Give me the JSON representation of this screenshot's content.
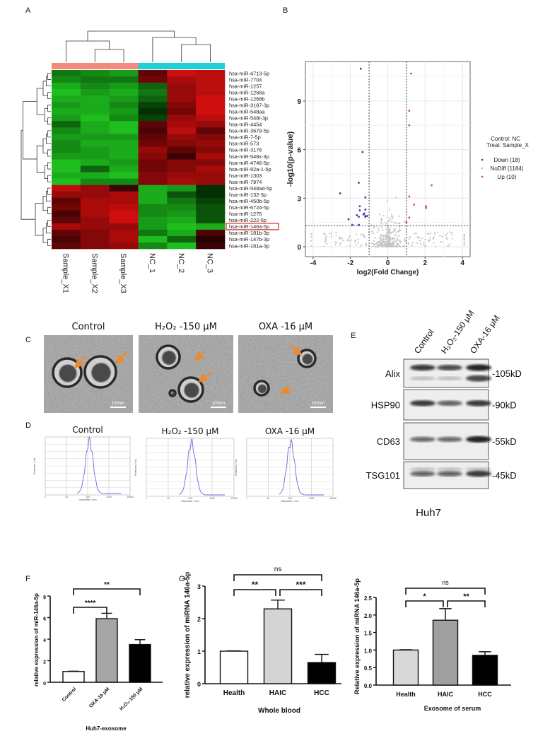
{
  "panel_labels": {
    "A": "A",
    "B": "B",
    "C": "C",
    "D": "D",
    "E": "E",
    "F": "F",
    "G": "G"
  },
  "chart_data": [
    {
      "panel": "A",
      "type": "heatmap",
      "columns": [
        "Sample_X1",
        "Sample_X2",
        "Sample_X3",
        "NC_1",
        "NC_2",
        "NC_3"
      ],
      "column_groups": [
        {
          "group": "Sample_X",
          "color": "#f28b7d",
          "columns": [
            0,
            1,
            2
          ]
        },
        {
          "group": "NC",
          "color": "#22cfd6",
          "columns": [
            3,
            4,
            5
          ]
        }
      ],
      "colors": {
        "low": "#22d022",
        "mid": "#000000",
        "high": "#e01010"
      },
      "rows": [
        "hsa-miR-4713-5p",
        "hsa-miR-7704",
        "hsa-miR-1257",
        "hsa-miR-1268a",
        "hsa-miR-1268b",
        "hsa-miR-3187-3p",
        "hsa-miR-548aa",
        "hsa-miR-548t-3p",
        "hsa-miR-4454",
        "hsa-miR-3679-5p",
        "hsa-miR-7-5p",
        "hsa-miR-573",
        "hsa-miR-3176",
        "hsa-miR-548x-3p",
        "hsa-miR-4746-5p",
        "hsa-miR-92a-1-5p",
        "hsa-miR-1303",
        "hsa-miR-7974",
        "hsa-miR-548ad-5p",
        "hsa-miR-132-3p",
        "hsa-miR-450b-5p",
        "hsa-miR-6724-5p",
        "hsa-miR-1275",
        "hsa-miR-222-5p",
        "hsa-miR-146a-5p",
        "hsa-miR-181b-3p",
        "hsa-miR-147b-3p",
        "hsa-miR-181a-3p"
      ],
      "highlighted_row": "hsa-miR-146a-5p",
      "values": [
        [
          -0.5,
          -0.6,
          -0.7,
          0.3,
          0.9,
          0.8
        ],
        [
          -0.6,
          -0.5,
          -0.5,
          0.4,
          0.7,
          0.8
        ],
        [
          -0.8,
          -0.6,
          -0.7,
          -0.4,
          0.6,
          0.8
        ],
        [
          -0.9,
          -0.7,
          -0.8,
          -0.5,
          0.6,
          0.8
        ],
        [
          -0.8,
          -0.8,
          -0.7,
          -0.4,
          0.6,
          0.9
        ],
        [
          -0.7,
          -0.8,
          -0.6,
          -0.2,
          0.5,
          0.9
        ],
        [
          -0.8,
          -0.8,
          -0.7,
          -0.1,
          0.4,
          0.9
        ],
        [
          -0.7,
          -0.9,
          -0.6,
          -0.2,
          0.6,
          0.8
        ],
        [
          -0.4,
          -0.8,
          -0.9,
          0.3,
          0.7,
          0.6
        ],
        [
          -0.6,
          -0.8,
          -0.9,
          0.2,
          0.8,
          0.3
        ],
        [
          -0.7,
          -0.7,
          -0.7,
          0.3,
          0.6,
          0.5
        ],
        [
          -0.6,
          -0.8,
          -0.8,
          0.4,
          0.5,
          0.6
        ],
        [
          -0.6,
          -0.7,
          -0.8,
          0.6,
          0.3,
          0.5
        ],
        [
          -0.7,
          -0.7,
          -0.8,
          0.5,
          0.1,
          0.7
        ],
        [
          -0.9,
          -0.8,
          -0.7,
          0.4,
          0.5,
          0.5
        ],
        [
          -0.9,
          -0.4,
          -0.8,
          0.4,
          0.5,
          0.7
        ],
        [
          -0.8,
          -0.8,
          -0.9,
          0.5,
          0.6,
          0.6
        ],
        [
          -0.9,
          -0.6,
          -0.6,
          0.5,
          0.7,
          0.6
        ],
        [
          0.8,
          0.6,
          0.1,
          -0.8,
          -0.7,
          -0.1
        ],
        [
          0.6,
          0.6,
          0.7,
          -0.8,
          -0.3,
          -0.1
        ],
        [
          0.3,
          0.7,
          0.7,
          -0.8,
          -0.5,
          -0.2
        ],
        [
          0.4,
          0.7,
          0.8,
          -0.6,
          -0.6,
          -0.3
        ],
        [
          0.2,
          0.7,
          0.9,
          -0.6,
          -0.7,
          -0.3
        ],
        [
          0.3,
          0.6,
          0.9,
          -0.7,
          -0.8,
          -0.3
        ],
        [
          0.7,
          0.6,
          0.6,
          -0.7,
          -0.9,
          -0.8
        ],
        [
          0.3,
          0.5,
          0.7,
          -0.5,
          -0.8,
          0.2
        ],
        [
          0.2,
          0.5,
          0.7,
          -0.9,
          -0.4,
          0.0
        ],
        [
          0.3,
          0.5,
          0.6,
          -0.6,
          -0.9,
          0.1
        ]
      ]
    },
    {
      "panel": "B",
      "type": "scatter",
      "xlabel": "log2(Fold Change)",
      "ylabel": "-log10(p-value)",
      "xlim": [
        -4.4,
        4.4
      ],
      "ylim": [
        -0.6,
        11.4
      ],
      "xticks": [
        -4,
        -2,
        0,
        2,
        4
      ],
      "yticks": [
        0,
        3,
        6,
        9
      ],
      "grid": true,
      "thresholds": {
        "x": [
          -1,
          1
        ],
        "y": 1.3
      },
      "legend": {
        "position": "right",
        "title_lines": [
          "Control: NC",
          "Treat:    Sample_X"
        ]
      },
      "series": [
        {
          "name": "Down (18)",
          "color": "#3a3aa8",
          "points": [
            [
              -1.45,
              11.0
            ],
            [
              -1.35,
              5.85
            ],
            [
              -1.55,
              3.95
            ],
            [
              -2.55,
              3.3
            ],
            [
              -1.2,
              3.05
            ],
            [
              -1.5,
              2.5
            ],
            [
              -1.5,
              2.25
            ],
            [
              -1.2,
              2.3
            ],
            [
              -1.25,
              2.05
            ],
            [
              -1.65,
              1.95
            ],
            [
              -1.2,
              1.9
            ],
            [
              -1.55,
              1.85
            ],
            [
              -1.1,
              1.9
            ],
            [
              -1.2,
              1.85
            ],
            [
              -2.1,
              1.7
            ],
            [
              -1.9,
              1.35
            ],
            [
              -1.55,
              1.35
            ],
            [
              -1.3,
              2.0
            ]
          ]
        },
        {
          "name": "NoDiff (1184)",
          "color": "#c4c4c4",
          "count": 1184
        },
        {
          "name": "Up (10)",
          "color": "#d0486a",
          "points": [
            [
              1.25,
              10.7
            ],
            [
              1.15,
              8.4
            ],
            [
              1.15,
              7.5
            ],
            [
              2.35,
              3.8
            ],
            [
              1.15,
              3.1
            ],
            [
              1.4,
              2.6
            ],
            [
              2.05,
              2.5
            ],
            [
              2.05,
              2.4
            ],
            [
              1.15,
              1.8
            ],
            [
              1.0,
              1.5
            ]
          ]
        }
      ]
    },
    {
      "panel": "D",
      "type": "line",
      "xlabel": "Diameter / nm",
      "ylabel": "Particles / mL",
      "xscale": "log",
      "xticks": [
        1,
        10,
        100,
        1000,
        10000
      ],
      "series": [
        {
          "name": "Control",
          "peak_diameter_nm": 120
        },
        {
          "name": "H₂O₂ -150 μM",
          "peak_diameter_nm": 115
        },
        {
          "name": "OXA -16 μM",
          "peak_diameter_nm": 110
        }
      ]
    },
    {
      "panel": "F",
      "type": "bar",
      "categories": [
        "Control",
        "OXA-16 μM",
        "H₂O₂-150 μM"
      ],
      "values": [
        1.0,
        5.9,
        3.5
      ],
      "errors": [
        0.0,
        0.5,
        0.45
      ],
      "colors": [
        "#ffffff",
        "#a6a6a6",
        "#000000"
      ],
      "ylabel": "relative expression of miR-146a-5p",
      "xlabel": "Huh7-exosome",
      "ylim": [
        0,
        8
      ],
      "yticks": [
        "0",
        "2",
        "4",
        "6",
        "8"
      ],
      "comparisons": [
        {
          "from": 0,
          "to": 1,
          "label": "****"
        },
        {
          "from": 0,
          "to": 2,
          "label": "**"
        }
      ]
    },
    {
      "panel": "G",
      "type": "bar",
      "categories": [
        "Health",
        "HAIC",
        "HCC"
      ],
      "values": [
        1.0,
        2.3,
        0.65
      ],
      "errors": [
        0.02,
        0.27,
        0.25
      ],
      "colors": [
        "#ffffff",
        "#d4d4d4",
        "#000000"
      ],
      "ylabel": "relative expression of miRNA 146a-5p",
      "xlabel": "Whole blood",
      "ylim": [
        0,
        3
      ],
      "yticks": [
        "0",
        "1",
        "2",
        "3"
      ],
      "comparisons": [
        {
          "from": 0,
          "to": 1,
          "label": "**"
        },
        {
          "from": 1,
          "to": 2,
          "label": "***"
        },
        {
          "from": 0,
          "to": 2,
          "label": "ns"
        }
      ]
    },
    {
      "panel": "G",
      "type": "bar",
      "categories": [
        "Health",
        "HAIC",
        "HCC"
      ],
      "values": [
        1.0,
        1.85,
        0.85
      ],
      "errors": [
        0.02,
        0.33,
        0.1
      ],
      "colors": [
        "#d8d8d8",
        "#a0a0a0",
        "#000000"
      ],
      "ylabel": "Relative expression of miRNA 146a-5p",
      "xlabel": "Exosome of serum",
      "ylim": [
        0,
        2.5
      ],
      "yticks": [
        "0.0",
        "0.5",
        "1.0",
        "1.5",
        "2.0",
        "2.5"
      ],
      "comparisons": [
        {
          "from": 0,
          "to": 1,
          "label": "*"
        },
        {
          "from": 1,
          "to": 2,
          "label": "**"
        },
        {
          "from": 0,
          "to": 2,
          "label": "ns"
        }
      ]
    }
  ],
  "panel_c": {
    "titles": [
      "Control",
      "H₂O₂ -150 μM",
      "OXA -16 μM"
    ],
    "scale_bar": "100nm",
    "arrow_color": "#ee8a2e"
  },
  "panel_e": {
    "lanes": [
      "Control",
      "H₂O₂-150 μM",
      "OXA-16 μM"
    ],
    "proteins": [
      {
        "name": "Alix",
        "size": "-105kD",
        "intensity": [
          0.8,
          0.7,
          1.0
        ]
      },
      {
        "name": "HSP90",
        "size": "-90kD",
        "intensity": [
          0.8,
          0.55,
          0.85
        ]
      },
      {
        "name": "CD63",
        "size": "-55kD",
        "intensity": [
          0.5,
          0.5,
          1.0
        ]
      },
      {
        "name": "TSG101",
        "size": "-45kD",
        "intensity": [
          0.55,
          0.55,
          0.85
        ]
      }
    ],
    "cell_line": "Huh7"
  }
}
